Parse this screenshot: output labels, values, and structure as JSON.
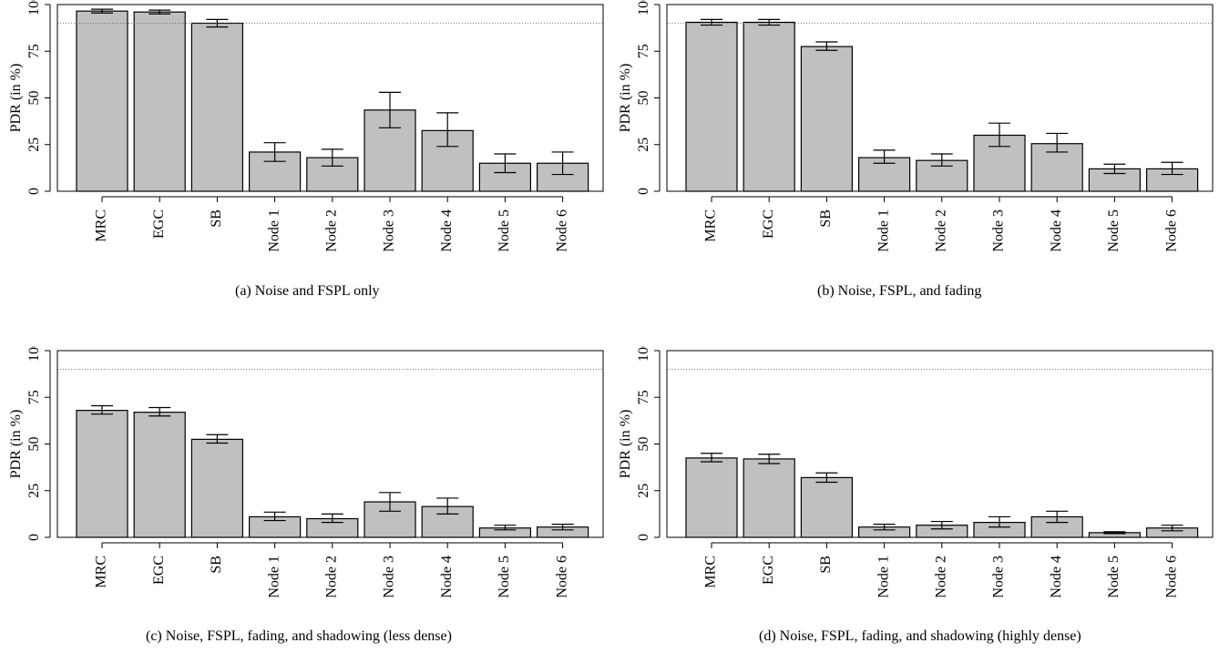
{
  "chart_data": [
    {
      "type": "bar",
      "caption": "(a) Noise and FSPL only",
      "ylabel": "PDR (in %)",
      "categories": [
        "MRC",
        "EGC",
        "SB",
        "Node 1",
        "Node 2",
        "Node 3",
        "Node 4",
        "Node 5",
        "Node 6"
      ],
      "values": [
        96.5,
        96,
        90,
        21,
        18,
        43.5,
        32.5,
        15,
        15
      ],
      "err_low": [
        95.5,
        95,
        88,
        16,
        13.5,
        34,
        24,
        10,
        9
      ],
      "err_high": [
        97.5,
        97,
        92,
        26,
        22.5,
        53,
        42,
        20,
        21
      ],
      "reference_line": 90,
      "ylim": [
        0,
        100
      ],
      "yticks": [
        0,
        25,
        50,
        75,
        100
      ],
      "bar_color": "#c0c0c0"
    },
    {
      "type": "bar",
      "caption": "(b) Noise, FSPL, and fading",
      "ylabel": "PDR (in %)",
      "categories": [
        "MRC",
        "EGC",
        "SB",
        "Node 1",
        "Node 2",
        "Node 3",
        "Node 4",
        "Node 5",
        "Node 6"
      ],
      "values": [
        90.5,
        90.5,
        77.5,
        18,
        16.5,
        30,
        25.5,
        12,
        12
      ],
      "err_low": [
        89,
        89,
        75.5,
        15,
        13.5,
        24,
        21,
        9.5,
        9
      ],
      "err_high": [
        92,
        92,
        80,
        22,
        20,
        36.5,
        31,
        14.5,
        15.5
      ],
      "reference_line": 90,
      "ylim": [
        0,
        100
      ],
      "yticks": [
        0,
        25,
        50,
        75,
        100
      ],
      "bar_color": "#c0c0c0"
    },
    {
      "type": "bar",
      "caption": "(c) Noise, FSPL, fading, and shadowing (less dense)",
      "ylabel": "PDR (in %)",
      "categories": [
        "MRC",
        "EGC",
        "SB",
        "Node 1",
        "Node 2",
        "Node 3",
        "Node 4",
        "Node 5",
        "Node 6"
      ],
      "values": [
        68,
        67,
        52.5,
        11,
        10,
        19,
        16.5,
        5,
        5.5
      ],
      "err_low": [
        66,
        65,
        50.5,
        9,
        8,
        14,
        12.5,
        4,
        4
      ],
      "err_high": [
        70.5,
        69.5,
        55,
        13.5,
        12.5,
        24,
        21,
        6.5,
        7
      ],
      "reference_line": 90,
      "ylim": [
        0,
        100
      ],
      "yticks": [
        0,
        25,
        50,
        75,
        100
      ],
      "bar_color": "#c0c0c0"
    },
    {
      "type": "bar",
      "caption": "(d) Noise, FSPL, fading, and shadowing (highly dense)",
      "ylabel": "PDR (in %)",
      "categories": [
        "MRC",
        "EGC",
        "SB",
        "Node 1",
        "Node 2",
        "Node 3",
        "Node 4",
        "Node 5",
        "Node 6"
      ],
      "values": [
        42.5,
        42,
        32,
        5.5,
        6.5,
        8,
        11,
        2.5,
        5
      ],
      "err_low": [
        40.5,
        39.5,
        29.5,
        4,
        4.5,
        5.5,
        8,
        2,
        3.5
      ],
      "err_high": [
        45,
        44.5,
        34.5,
        7,
        8.5,
        11,
        14,
        3,
        6.5
      ],
      "reference_line": 90,
      "ylim": [
        0,
        100
      ],
      "yticks": [
        0,
        25,
        50,
        75,
        100
      ],
      "bar_color": "#c0c0c0"
    }
  ]
}
